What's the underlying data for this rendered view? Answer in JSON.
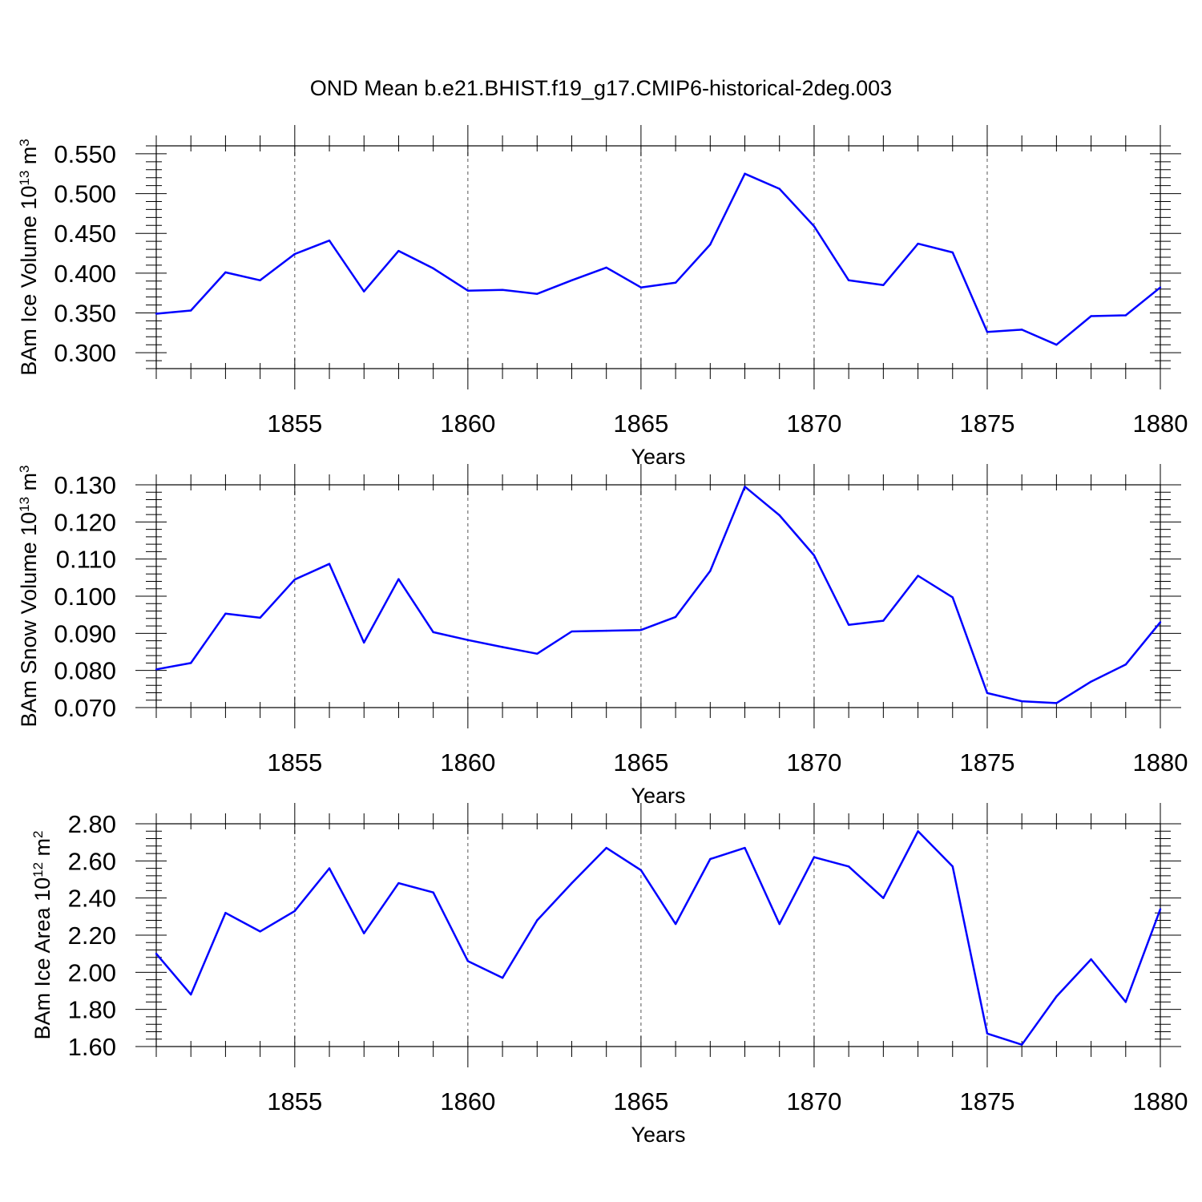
{
  "title": "OND Mean b.e21.BHIST.f19_g17.CMIP6-historical-2deg.003",
  "chart_data": [
    {
      "type": "line",
      "ylabel": "BAm Ice Volume 10",
      "ylabel_exp": "13",
      "ylabel_unit": " m",
      "ylabel_unit_exp": "3",
      "xlabel": "Years",
      "x_ticks": [
        "1855",
        "1860",
        "1865",
        "1870",
        "1875",
        "1880"
      ],
      "x_tick_values": [
        1855,
        1860,
        1865,
        1870,
        1875,
        1880
      ],
      "y_ticks": [
        "0.300",
        "0.350",
        "0.400",
        "0.450",
        "0.500",
        "0.550"
      ],
      "y_tick_values": [
        0.3,
        0.35,
        0.4,
        0.45,
        0.5,
        0.55
      ],
      "xlim": [
        1851,
        1880
      ],
      "ylim": [
        0.28,
        0.56
      ],
      "grid": "vertical dashed at major ticks",
      "color": "#0000ff",
      "x": [
        1851,
        1852,
        1853,
        1854,
        1855,
        1856,
        1857,
        1858,
        1859,
        1860,
        1861,
        1862,
        1863,
        1864,
        1865,
        1866,
        1867,
        1868,
        1869,
        1870,
        1871,
        1872,
        1873,
        1874,
        1875,
        1876,
        1877,
        1878,
        1879,
        1880
      ],
      "values": [
        0.349,
        0.353,
        0.401,
        0.391,
        0.424,
        0.441,
        0.377,
        0.428,
        0.406,
        0.378,
        0.379,
        0.374,
        0.391,
        0.407,
        0.382,
        0.388,
        0.436,
        0.525,
        0.506,
        0.459,
        0.391,
        0.385,
        0.437,
        0.426,
        0.326,
        0.329,
        0.31,
        0.346,
        0.347,
        0.382
      ]
    },
    {
      "type": "line",
      "ylabel": "BAm Snow Volume 10",
      "ylabel_exp": "13",
      "ylabel_unit": " m",
      "ylabel_unit_exp": "3",
      "xlabel": "Years",
      "x_ticks": [
        "1855",
        "1860",
        "1865",
        "1870",
        "1875",
        "1880"
      ],
      "x_tick_values": [
        1855,
        1860,
        1865,
        1870,
        1875,
        1880
      ],
      "y_ticks": [
        "0.070",
        "0.080",
        "0.090",
        "0.100",
        "0.110",
        "0.120",
        "0.130"
      ],
      "y_tick_values": [
        0.07,
        0.08,
        0.09,
        0.1,
        0.11,
        0.12,
        0.13
      ],
      "xlim": [
        1851,
        1880
      ],
      "ylim": [
        0.07,
        0.13
      ],
      "grid": "vertical dashed at major ticks",
      "color": "#0000ff",
      "x": [
        1851,
        1852,
        1853,
        1854,
        1855,
        1856,
        1857,
        1858,
        1859,
        1860,
        1861,
        1862,
        1863,
        1864,
        1865,
        1866,
        1867,
        1868,
        1869,
        1870,
        1871,
        1872,
        1873,
        1874,
        1875,
        1876,
        1877,
        1878,
        1879,
        1880
      ],
      "values": [
        0.0803,
        0.082,
        0.0953,
        0.0942,
        0.1045,
        0.1087,
        0.0875,
        0.1046,
        0.0903,
        0.0882,
        0.0863,
        0.0845,
        0.0905,
        0.0907,
        0.0909,
        0.0944,
        0.1068,
        0.1295,
        0.1218,
        0.111,
        0.0923,
        0.0934,
        0.1055,
        0.0997,
        0.0739,
        0.0717,
        0.0712,
        0.077,
        0.0816,
        0.093
      ]
    },
    {
      "type": "line",
      "ylabel": "BAm Ice Area 10",
      "ylabel_exp": "12",
      "ylabel_unit": " m",
      "ylabel_unit_exp": "2",
      "xlabel": "Years",
      "x_ticks": [
        "1855",
        "1860",
        "1865",
        "1870",
        "1875",
        "1880"
      ],
      "x_tick_values": [
        1855,
        1860,
        1865,
        1870,
        1875,
        1880
      ],
      "y_ticks": [
        "1.60",
        "1.80",
        "2.00",
        "2.20",
        "2.40",
        "2.60",
        "2.80"
      ],
      "y_tick_values": [
        1.6,
        1.8,
        2.0,
        2.2,
        2.4,
        2.6,
        2.8
      ],
      "xlim": [
        1851,
        1880
      ],
      "ylim": [
        1.6,
        2.8
      ],
      "grid": "vertical dashed at major ticks",
      "color": "#0000ff",
      "x": [
        1851,
        1852,
        1853,
        1854,
        1855,
        1856,
        1857,
        1858,
        1859,
        1860,
        1861,
        1862,
        1863,
        1864,
        1865,
        1866,
        1867,
        1868,
        1869,
        1870,
        1871,
        1872,
        1873,
        1874,
        1875,
        1876,
        1877,
        1878,
        1879,
        1880
      ],
      "values": [
        2.1,
        1.88,
        2.32,
        2.22,
        2.33,
        2.56,
        2.21,
        2.48,
        2.43,
        2.06,
        1.97,
        2.28,
        2.48,
        2.67,
        2.55,
        2.26,
        2.61,
        2.67,
        2.26,
        2.62,
        2.57,
        2.4,
        2.76,
        2.57,
        1.67,
        1.61,
        1.87,
        2.07,
        1.84,
        2.34
      ]
    }
  ]
}
